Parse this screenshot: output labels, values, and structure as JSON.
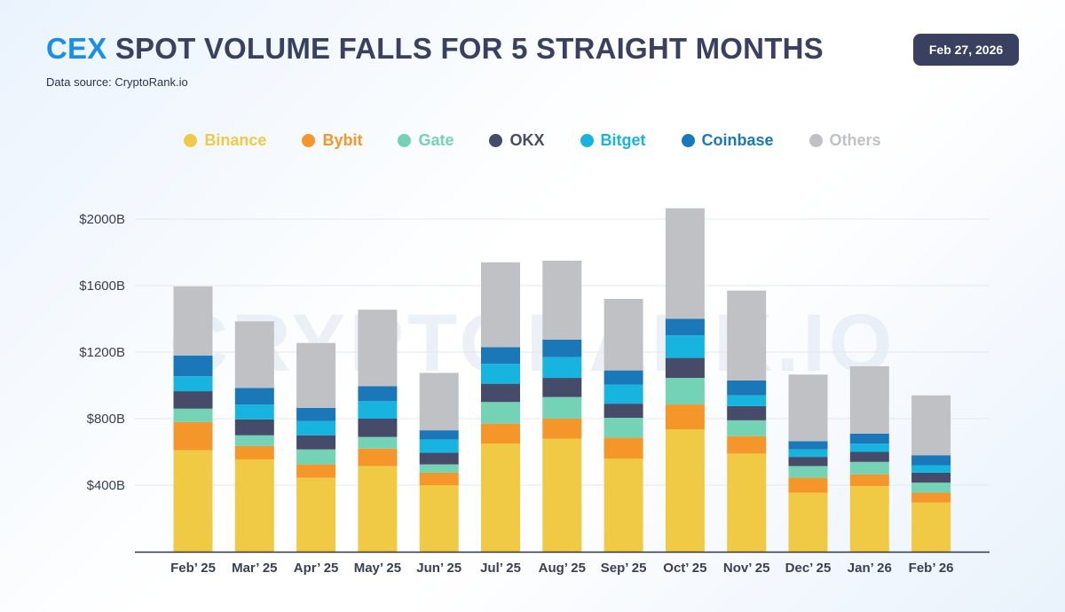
{
  "header": {
    "title_accent": "CEX",
    "title_rest": "SPOT VOLUME FALLS FOR 5 STRAIGHT MONTHS",
    "source": "Data source: CryptoRank.io",
    "date": "Feb 27, 2026"
  },
  "watermark": "CRYPTORANK.IO",
  "colors": {
    "Binance": "#f0c945",
    "Bybit": "#f5962b",
    "Gate": "#74d3b5",
    "OKX": "#464b69",
    "Bitget": "#18b4e0",
    "Coinbase": "#1a78b8",
    "Others": "#bfc1c5"
  },
  "chart_data": {
    "type": "bar",
    "stacked": true,
    "title": "CEX SPOT VOLUME FALLS FOR 5 STRAIGHT MONTHS",
    "xlabel": "",
    "ylabel": "",
    "ylim": [
      0,
      2000
    ],
    "yticks": [
      400,
      800,
      1200,
      1600,
      2000
    ],
    "ytick_labels": [
      "$400B",
      "$800B",
      "$1200B",
      "$1600B",
      "$2000B"
    ],
    "grid": true,
    "legend_position": "top",
    "categories": [
      "Feb’ 25",
      "Mar’ 25",
      "Apr’ 25",
      "May’ 25",
      "Jun’ 25",
      "Jul’ 25",
      "Aug’ 25",
      "Sep’ 25",
      "Oct’ 25",
      "Nov’ 25",
      "Dec’ 25",
      "Jan’ 26",
      "Feb’ 26"
    ],
    "series": [
      {
        "name": "Binance",
        "values": [
          610,
          555,
          445,
          515,
          400,
          650,
          680,
          560,
          735,
          590,
          355,
          395,
          295
        ]
      },
      {
        "name": "Bybit",
        "values": [
          170,
          80,
          80,
          105,
          75,
          120,
          120,
          125,
          150,
          105,
          90,
          70,
          60
        ]
      },
      {
        "name": "Gate",
        "values": [
          80,
          65,
          90,
          70,
          50,
          130,
          130,
          120,
          160,
          95,
          70,
          75,
          60
        ]
      },
      {
        "name": "OKX",
        "values": [
          105,
          95,
          85,
          110,
          70,
          110,
          115,
          85,
          120,
          85,
          55,
          60,
          60
        ]
      },
      {
        "name": "Bitget",
        "values": [
          90,
          90,
          85,
          105,
          80,
          120,
          125,
          115,
          135,
          65,
          45,
          50,
          45
        ]
      },
      {
        "name": "Coinbase",
        "values": [
          125,
          100,
          80,
          90,
          55,
          100,
          105,
          85,
          100,
          90,
          50,
          60,
          60
        ]
      },
      {
        "name": "Others",
        "values": [
          415,
          400,
          390,
          460,
          345,
          510,
          475,
          430,
          665,
          540,
          400,
          405,
          360
        ]
      }
    ]
  }
}
